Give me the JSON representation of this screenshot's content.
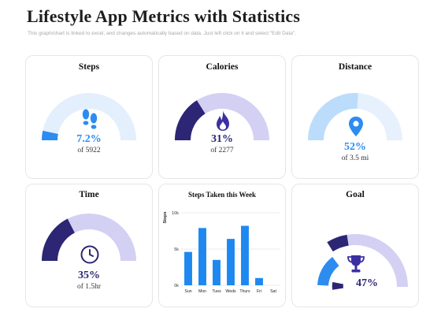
{
  "header": {
    "title": "Lifestyle App Metrics with Statistics",
    "subtitle": "This graph/chart is linked to excel, and changes automatically based on data. Just left click on it and select \"Edit Data\"."
  },
  "cards": {
    "steps": {
      "title": "Steps",
      "percent_label": "7.2%",
      "percent": 7.2,
      "of_label": "of 5922",
      "icon": "footprints-icon",
      "color": "#2d8cf0",
      "track_color": "#e3effd"
    },
    "calories": {
      "title": "Calories",
      "percent_label": "31%",
      "percent": 31,
      "of_label": "of 2277",
      "icon": "flame-icon",
      "color": "#2c2675",
      "track_color": "#d4d0f3"
    },
    "distance": {
      "title": "Distance",
      "percent_label": "52%",
      "percent": 52,
      "of_label": "of 3.5 mi",
      "icon": "map-pin-icon",
      "color": "#bcdcfb",
      "track_color": "#e6f1fd"
    },
    "time": {
      "title": "Time",
      "percent_label": "35%",
      "percent": 35,
      "of_label": "of 1.5hr",
      "icon": "clock-icon",
      "color": "#2c2675",
      "track_color": "#d4d0f3"
    },
    "goal": {
      "title": "Goal",
      "percent_label": "47%",
      "percent": 47,
      "icon": "trophy-icon"
    }
  },
  "chart_data": {
    "type": "bar",
    "title": "Steps Taken this Week",
    "ylabel": "Steps",
    "categories": [
      "Sun",
      "Mon",
      "Tues",
      "Weds",
      "Thurs",
      "Fri",
      "Sat"
    ],
    "values": [
      4600,
      7900,
      3500,
      6400,
      8200,
      1000,
      0
    ],
    "ylim": [
      0,
      10000
    ],
    "yticks": [
      0,
      5000,
      10000
    ],
    "ytick_labels": [
      "0k",
      "5k",
      "10k"
    ],
    "grid": true,
    "bar_color": "#1e88f0"
  },
  "colors": {
    "blue": "#2d8cf0",
    "navy": "#2c2675",
    "lavender": "#d4d0f3",
    "light_blue": "#e3effd"
  }
}
